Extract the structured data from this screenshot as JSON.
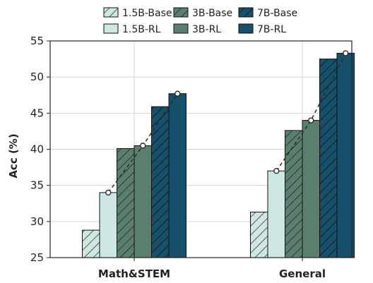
{
  "chart_data": {
    "type": "bar",
    "categories": [
      "Math&STEM",
      "General"
    ],
    "ylabel": "Acc (%)",
    "ylim": [
      25,
      55
    ],
    "yticks": [
      25,
      30,
      35,
      40,
      45,
      50,
      55
    ],
    "grid": true,
    "legend_position": "top",
    "series": [
      {
        "name": "1.5B-Base",
        "values": [
          28.8,
          31.3
        ],
        "color": "#cfe7e2",
        "hatch": true
      },
      {
        "name": "1.5B-RL",
        "values": [
          34.0,
          37.0
        ],
        "color": "#cfe7e2",
        "hatch": false
      },
      {
        "name": "3B-Base",
        "values": [
          40.1,
          42.6
        ],
        "color": "#5b7f6e",
        "hatch": true
      },
      {
        "name": "3B-RL",
        "values": [
          40.5,
          44.0
        ],
        "color": "#5b7f6e",
        "hatch": false
      },
      {
        "name": "7B-Base",
        "values": [
          45.9,
          52.5
        ],
        "color": "#17506b",
        "hatch": true
      },
      {
        "name": "7B-RL",
        "values": [
          47.7,
          53.3
        ],
        "color": "#17506b",
        "hatch": false
      }
    ],
    "trend_line": {
      "style": "dashed",
      "through": [
        "1.5B-RL",
        "3B-RL",
        "7B-RL"
      ],
      "marker": "circle"
    }
  }
}
